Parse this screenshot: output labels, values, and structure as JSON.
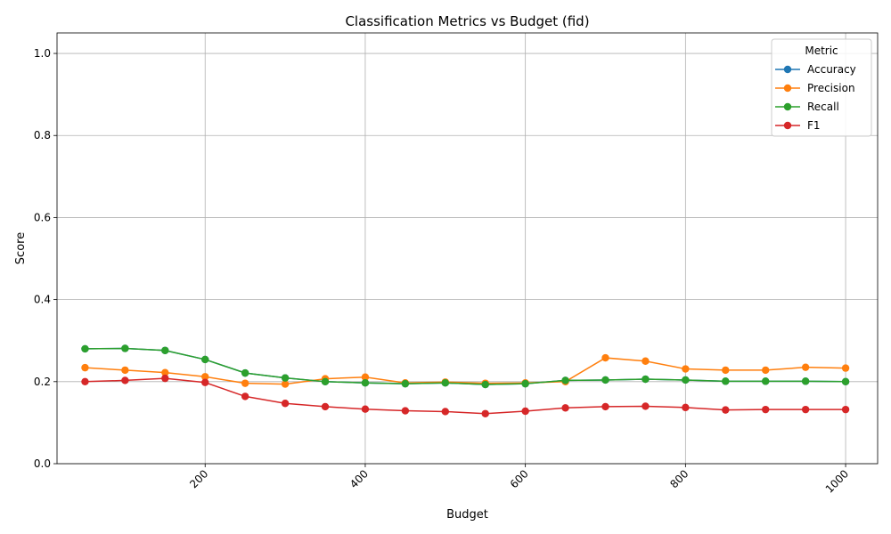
{
  "chart_data": {
    "type": "line",
    "title": "Classification Metrics vs Budget (fid)",
    "xlabel": "Budget",
    "ylabel": "Score",
    "xlim": [
      15,
      1040
    ],
    "ylim": [
      0,
      1.05
    ],
    "xticks": [
      200,
      400,
      600,
      800,
      1000
    ],
    "yticks": [
      0.0,
      0.2,
      0.4,
      0.6,
      0.8,
      1.0
    ],
    "ytick_labels": [
      "0.0",
      "0.2",
      "0.4",
      "0.6",
      "0.8",
      "1.0"
    ],
    "grid": true,
    "legend": {
      "title": "Metric",
      "placement": "top-right"
    },
    "x": [
      50,
      100,
      150,
      200,
      250,
      300,
      350,
      400,
      450,
      500,
      550,
      600,
      650,
      700,
      750,
      800,
      850,
      900,
      950,
      1000
    ],
    "series": [
      {
        "name": "Accuracy",
        "color": "#1f77b4",
        "values": [
          0.28,
          0.281,
          0.276,
          0.254,
          0.221,
          0.209,
          0.2,
          0.197,
          0.195,
          0.197,
          0.193,
          0.195,
          0.203,
          0.204,
          0.206,
          0.204,
          0.201,
          0.201,
          0.201,
          0.2
        ]
      },
      {
        "name": "Precision",
        "color": "#ff7f0e",
        "values": [
          0.234,
          0.228,
          0.222,
          0.212,
          0.196,
          0.194,
          0.207,
          0.211,
          0.197,
          0.199,
          0.196,
          0.197,
          0.2,
          0.258,
          0.25,
          0.231,
          0.228,
          0.228,
          0.235,
          0.233
        ]
      },
      {
        "name": "Recall",
        "color": "#2ca02c",
        "values": [
          0.28,
          0.281,
          0.276,
          0.254,
          0.221,
          0.209,
          0.2,
          0.197,
          0.195,
          0.197,
          0.193,
          0.195,
          0.203,
          0.204,
          0.206,
          0.204,
          0.201,
          0.201,
          0.201,
          0.2
        ]
      },
      {
        "name": "F1",
        "color": "#d62728",
        "values": [
          0.2,
          0.203,
          0.208,
          0.198,
          0.164,
          0.147,
          0.139,
          0.133,
          0.129,
          0.127,
          0.122,
          0.128,
          0.136,
          0.139,
          0.14,
          0.137,
          0.131,
          0.132,
          0.132,
          0.132
        ]
      }
    ]
  }
}
